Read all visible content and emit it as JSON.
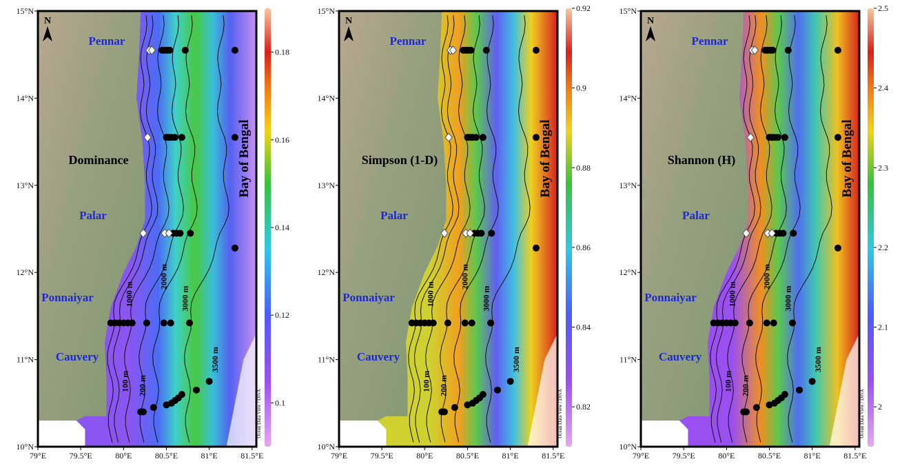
{
  "lon_ticks": [
    {
      "value": 79,
      "label": "79°E"
    },
    {
      "value": 79.5,
      "label": "79.5°E"
    },
    {
      "value": 80,
      "label": "80°E"
    },
    {
      "value": 80.5,
      "label": "80.5°E"
    },
    {
      "value": 81,
      "label": "81°E"
    },
    {
      "value": 81.5,
      "label": "81.5°E"
    }
  ],
  "lat_ticks": [
    {
      "value": 10,
      "label": "10°N"
    },
    {
      "value": 11,
      "label": "11°N"
    },
    {
      "value": 12,
      "label": "12°N"
    },
    {
      "value": 13,
      "label": "13°N"
    },
    {
      "value": 14,
      "label": "14°N"
    },
    {
      "value": 15,
      "label": "15°N"
    }
  ],
  "xlim": [
    79,
    81.55
  ],
  "ylim": [
    10,
    15
  ],
  "north": "N",
  "rivers": [
    "Pennar",
    "Palar",
    "Ponnaiyar",
    "Cauvery"
  ],
  "sea": "Bay of Bengal",
  "contours": [
    "100 m",
    "200 m",
    "1000 m",
    "2000 m",
    "3000 m",
    "3500 m"
  ],
  "credit": "Ocean Data View / DIVA",
  "panels": [
    {
      "label": "Dominance",
      "colorbar": {
        "lim": [
          0.09,
          0.19
        ],
        "ticks": [
          0.1,
          0.12,
          0.14,
          0.16,
          0.18
        ]
      }
    },
    {
      "label": "Simpson (1-D)",
      "colorbar": {
        "lim": [
          0.81,
          0.92
        ],
        "ticks": [
          0.82,
          0.84,
          0.86,
          0.88,
          0.9,
          0.92
        ]
      }
    },
    {
      "label": "Shannon (H)",
      "colorbar": {
        "lim": [
          1.95,
          2.5
        ],
        "ticks": [
          2,
          2.1,
          2.2,
          2.3,
          2.4,
          2.5
        ]
      }
    }
  ]
}
